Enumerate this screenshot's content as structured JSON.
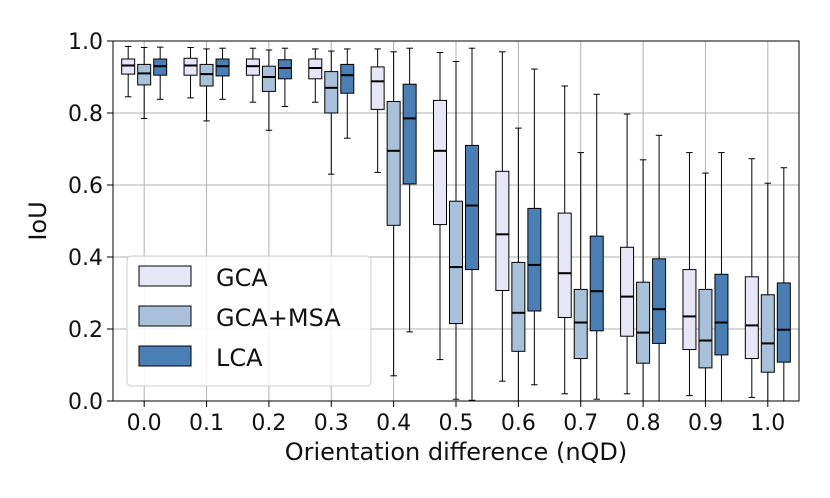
{
  "chart_data": {
    "type": "box",
    "xlabel": "Orientation difference (nQD)",
    "ylabel": "IoU",
    "ylim": [
      0.0,
      1.0
    ],
    "yticks": [
      "0.0",
      "0.2",
      "0.4",
      "0.6",
      "0.8",
      "1.0"
    ],
    "categories": [
      "0.0",
      "0.1",
      "0.2",
      "0.3",
      "0.4",
      "0.5",
      "0.6",
      "0.7",
      "0.8",
      "0.9",
      "1.0"
    ],
    "grid": true,
    "legend_position": "lower-left",
    "series": [
      {
        "name": "GCA",
        "color": "#e6e6f7",
        "boxes": [
          {
            "whislo": 0.845,
            "q1": 0.908,
            "med": 0.932,
            "q3": 0.95,
            "whishi": 0.985
          },
          {
            "whislo": 0.842,
            "q1": 0.905,
            "med": 0.932,
            "q3": 0.952,
            "whishi": 0.982
          },
          {
            "whislo": 0.83,
            "q1": 0.905,
            "med": 0.93,
            "q3": 0.95,
            "whishi": 0.98
          },
          {
            "whislo": 0.83,
            "q1": 0.895,
            "med": 0.925,
            "q3": 0.95,
            "whishi": 0.978
          },
          {
            "whislo": 0.635,
            "q1": 0.81,
            "med": 0.888,
            "q3": 0.928,
            "whishi": 0.978
          },
          {
            "whislo": 0.115,
            "q1": 0.49,
            "med": 0.695,
            "q3": 0.835,
            "whishi": 0.968
          },
          {
            "whislo": 0.055,
            "q1": 0.307,
            "med": 0.463,
            "q3": 0.638,
            "whishi": 0.97
          },
          {
            "whislo": 0.02,
            "q1": 0.232,
            "med": 0.355,
            "q3": 0.522,
            "whishi": 0.875
          },
          {
            "whislo": 0.02,
            "q1": 0.18,
            "med": 0.29,
            "q3": 0.427,
            "whishi": 0.797
          },
          {
            "whislo": 0.015,
            "q1": 0.143,
            "med": 0.235,
            "q3": 0.365,
            "whishi": 0.69
          },
          {
            "whislo": 0.01,
            "q1": 0.118,
            "med": 0.21,
            "q3": 0.345,
            "whishi": 0.673
          }
        ]
      },
      {
        "name": "GCA+MSA",
        "color": "#a9c0db",
        "boxes": [
          {
            "whislo": 0.785,
            "q1": 0.878,
            "med": 0.91,
            "q3": 0.935,
            "whishi": 0.982
          },
          {
            "whislo": 0.778,
            "q1": 0.875,
            "med": 0.908,
            "q3": 0.935,
            "whishi": 0.978
          },
          {
            "whislo": 0.752,
            "q1": 0.86,
            "med": 0.9,
            "q3": 0.93,
            "whishi": 0.975
          },
          {
            "whislo": 0.63,
            "q1": 0.8,
            "med": 0.87,
            "q3": 0.915,
            "whishi": 0.972
          },
          {
            "whislo": 0.07,
            "q1": 0.488,
            "med": 0.695,
            "q3": 0.832,
            "whishi": 0.97
          },
          {
            "whislo": 0.005,
            "q1": 0.215,
            "med": 0.372,
            "q3": 0.555,
            "whishi": 0.943
          },
          {
            "whislo": 0.0,
            "q1": 0.138,
            "med": 0.245,
            "q3": 0.385,
            "whishi": 0.758
          },
          {
            "whislo": 0.0,
            "q1": 0.118,
            "med": 0.218,
            "q3": 0.31,
            "whishi": 0.69
          },
          {
            "whislo": 0.0,
            "q1": 0.105,
            "med": 0.19,
            "q3": 0.33,
            "whishi": 0.67
          },
          {
            "whislo": 0.0,
            "q1": 0.092,
            "med": 0.168,
            "q3": 0.31,
            "whishi": 0.633
          },
          {
            "whislo": 0.0,
            "q1": 0.08,
            "med": 0.16,
            "q3": 0.295,
            "whishi": 0.605
          }
        ]
      },
      {
        "name": "LCA",
        "color": "#4a7fb5",
        "boxes": [
          {
            "whislo": 0.838,
            "q1": 0.905,
            "med": 0.93,
            "q3": 0.95,
            "whishi": 0.983
          },
          {
            "whislo": 0.838,
            "q1": 0.903,
            "med": 0.93,
            "q3": 0.95,
            "whishi": 0.98
          },
          {
            "whislo": 0.818,
            "q1": 0.895,
            "med": 0.925,
            "q3": 0.948,
            "whishi": 0.98
          },
          {
            "whislo": 0.73,
            "q1": 0.855,
            "med": 0.905,
            "q3": 0.935,
            "whishi": 0.978
          },
          {
            "whislo": 0.192,
            "q1": 0.603,
            "med": 0.785,
            "q3": 0.88,
            "whishi": 0.98
          },
          {
            "whislo": 0.002,
            "q1": 0.365,
            "med": 0.543,
            "q3": 0.71,
            "whishi": 0.98
          },
          {
            "whislo": 0.045,
            "q1": 0.25,
            "med": 0.378,
            "q3": 0.535,
            "whishi": 0.922
          },
          {
            "whislo": 0.005,
            "q1": 0.195,
            "med": 0.305,
            "q3": 0.458,
            "whishi": 0.852
          },
          {
            "whislo": 0.0,
            "q1": 0.16,
            "med": 0.255,
            "q3": 0.395,
            "whishi": 0.738
          },
          {
            "whislo": 0.0,
            "q1": 0.128,
            "med": 0.218,
            "q3": 0.352,
            "whishi": 0.69
          },
          {
            "whislo": 0.0,
            "q1": 0.108,
            "med": 0.198,
            "q3": 0.328,
            "whishi": 0.648
          }
        ]
      }
    ]
  }
}
